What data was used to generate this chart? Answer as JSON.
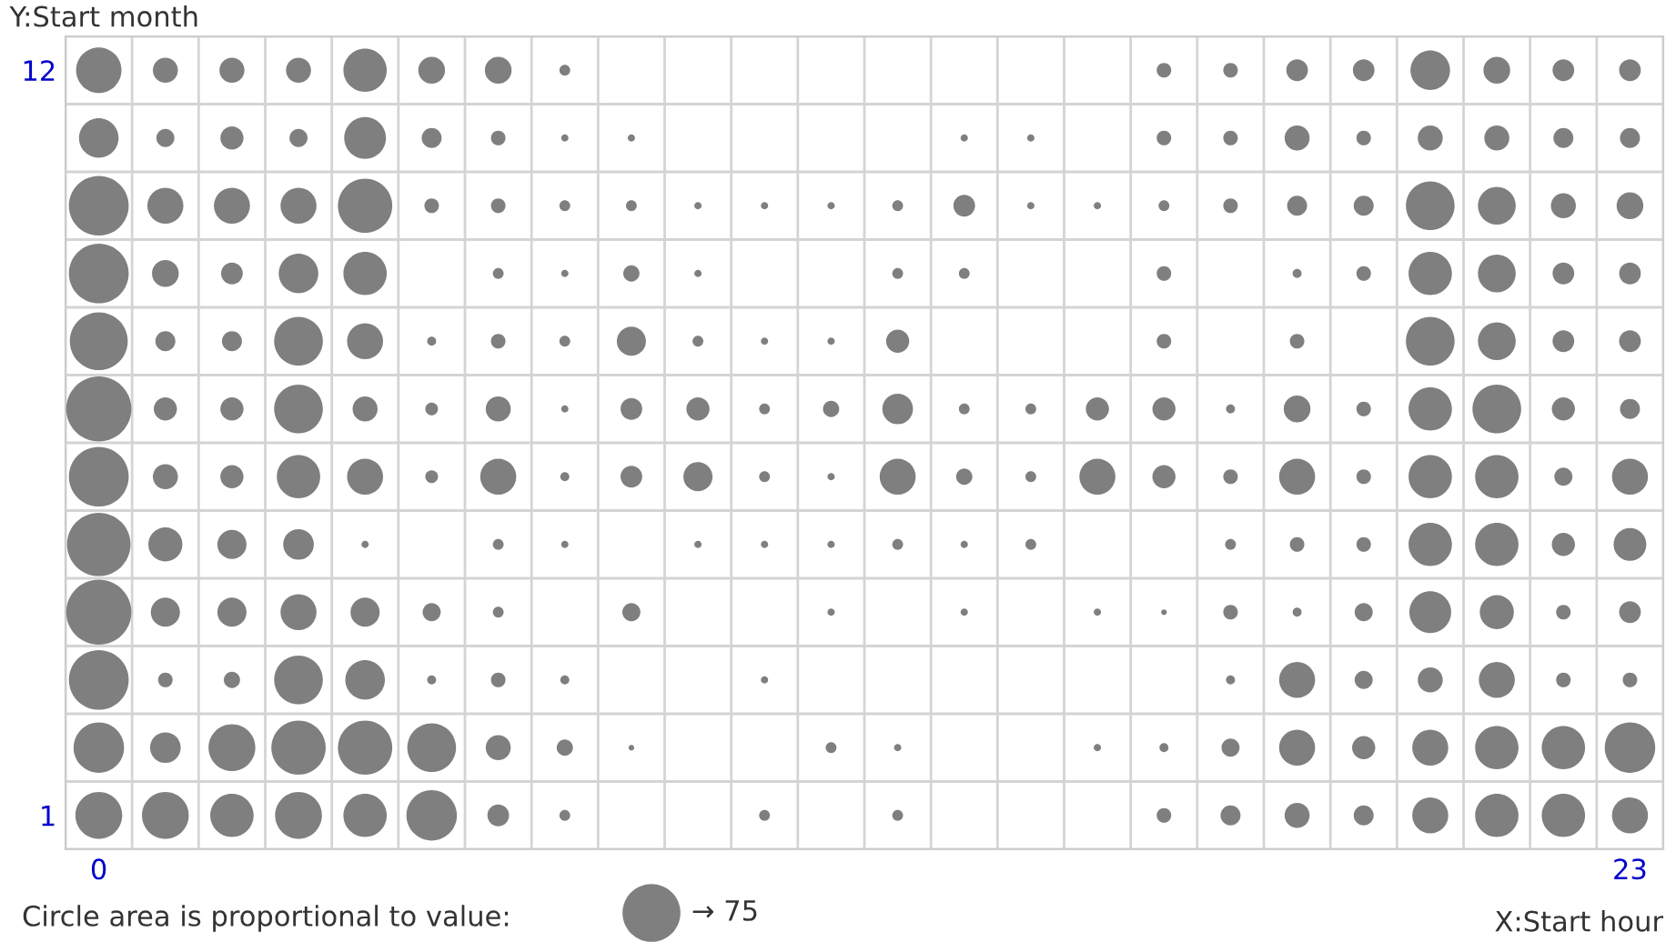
{
  "chart_data": {
    "type": "bubble",
    "ylabel": "Y:Start month",
    "xlabel": "X:Start hour",
    "legend_title": "Circle area is proportional to value:",
    "size_legend": [
      {
        "value": 75,
        "label": "→ 75"
      }
    ],
    "color": "#7f7f7f",
    "grid": true,
    "xlim": [
      -0.5,
      23.5
    ],
    "ylim": [
      0.5,
      12.5
    ],
    "xticks": [
      0,
      23
    ],
    "yticks": [
      1,
      12
    ],
    "series": [
      {
        "x": [
          0,
          1,
          2,
          3,
          4,
          5,
          6,
          7,
          16,
          17,
          18,
          19,
          20,
          21,
          22,
          23
        ],
        "values": [
          12,
          12,
          12,
          12,
          12,
          12,
          12,
          12,
          12,
          12,
          12,
          12,
          12,
          12,
          12,
          12
        ],
        "sizes": [
          46,
          14,
          14,
          14,
          42,
          16,
          16,
          2.6,
          4.7,
          4.7,
          10.5,
          10.5,
          35,
          16,
          10.5,
          10.5
        ]
      },
      {
        "x": [
          0,
          1,
          2,
          3,
          4,
          5,
          6,
          7,
          8,
          13,
          14,
          16,
          17,
          18,
          19,
          20,
          21,
          22,
          23
        ],
        "values": [
          11,
          11,
          11,
          11,
          11,
          11,
          11,
          11,
          11,
          11,
          11,
          11,
          11,
          11,
          11,
          11,
          11,
          11,
          11
        ],
        "sizes": [
          35,
          7.3,
          12,
          7.3,
          39,
          8.9,
          4.7,
          1.2,
          1.2,
          1.2,
          1.2,
          4.7,
          4.7,
          14,
          4.7,
          14,
          14,
          8.9,
          8.9
        ]
      },
      {
        "x": [
          0,
          1,
          2,
          3,
          4,
          5,
          6,
          7,
          8,
          9,
          10,
          11,
          12,
          13,
          14,
          15,
          16,
          17,
          18,
          19,
          20,
          21,
          22,
          23
        ],
        "values": [
          10,
          10,
          10,
          10,
          10,
          10,
          10,
          10,
          10,
          10,
          10,
          10,
          10,
          10,
          10,
          10,
          10,
          10,
          10,
          10,
          10,
          10,
          10,
          10
        ],
        "sizes": [
          80,
          29,
          29,
          29,
          66,
          4.7,
          4.7,
          2.6,
          2.6,
          1.2,
          1.2,
          1.2,
          2.6,
          10.5,
          1.2,
          1.2,
          2.6,
          4.7,
          8.9,
          8.9,
          53,
          32,
          14,
          16
        ]
      },
      {
        "x": [
          0,
          1,
          2,
          3,
          4,
          6,
          7,
          8,
          9,
          12,
          13,
          16,
          18,
          19,
          20,
          21,
          22,
          23
        ],
        "values": [
          9,
          9,
          9,
          9,
          9,
          9,
          9,
          9,
          9,
          9,
          9,
          9,
          9,
          9,
          9,
          9,
          9,
          9
        ],
        "sizes": [
          80,
          16,
          10.5,
          35,
          42,
          2.6,
          1.2,
          5.9,
          1.2,
          2.6,
          2.6,
          4.7,
          1.8,
          4.7,
          42,
          32,
          10.5,
          10.5
        ]
      },
      {
        "x": [
          0,
          1,
          2,
          3,
          4,
          5,
          6,
          7,
          8,
          9,
          10,
          11,
          12,
          16,
          18,
          20,
          21,
          22,
          23
        ],
        "values": [
          8,
          8,
          8,
          8,
          8,
          8,
          8,
          8,
          8,
          8,
          8,
          8,
          8,
          8,
          8,
          8,
          8,
          8,
          8
        ],
        "sizes": [
          75,
          8.9,
          8.9,
          53,
          29,
          1.8,
          4.7,
          2.6,
          19,
          2.6,
          1.2,
          1.2,
          12,
          4.7,
          4.7,
          53,
          32,
          10.5,
          10.5
        ]
      },
      {
        "x": [
          0,
          1,
          2,
          3,
          4,
          5,
          6,
          7,
          8,
          9,
          10,
          11,
          12,
          13,
          14,
          15,
          16,
          17,
          18,
          19,
          20,
          21,
          22,
          23
        ],
        "values": [
          7,
          7,
          7,
          7,
          7,
          7,
          7,
          7,
          7,
          7,
          7,
          7,
          7,
          7,
          7,
          7,
          7,
          7,
          7,
          7,
          7,
          7,
          7,
          7
        ],
        "sizes": [
          95,
          12,
          12,
          53,
          14,
          3.6,
          14,
          1.2,
          10.5,
          12,
          2.6,
          5.9,
          21,
          2.6,
          2.6,
          12,
          12,
          1.8,
          16,
          4.7,
          42,
          53,
          12,
          8.9
        ]
      },
      {
        "x": [
          0,
          1,
          2,
          3,
          4,
          5,
          6,
          7,
          8,
          9,
          10,
          11,
          12,
          13,
          14,
          15,
          16,
          17,
          18,
          19,
          20,
          21,
          22,
          23
        ],
        "values": [
          6,
          6,
          6,
          6,
          6,
          6,
          6,
          6,
          6,
          6,
          6,
          6,
          6,
          6,
          6,
          6,
          6,
          6,
          6,
          6,
          6,
          6,
          6,
          6
        ],
        "sizes": [
          80,
          14,
          12,
          42,
          29,
          3.6,
          29,
          1.8,
          10.5,
          19,
          2.6,
          1.2,
          29,
          5.9,
          2.6,
          29,
          12,
          4.7,
          29,
          4.7,
          42,
          42,
          7.3,
          29
        ]
      },
      {
        "x": [
          0,
          1,
          2,
          3,
          4,
          6,
          7,
          9,
          10,
          11,
          12,
          13,
          14,
          17,
          18,
          19,
          20,
          21,
          22,
          23
        ],
        "values": [
          5,
          5,
          5,
          5,
          5,
          5,
          5,
          5,
          5,
          5,
          5,
          5,
          5,
          5,
          5,
          5,
          5,
          5,
          5,
          5
        ],
        "sizes": [
          90,
          26,
          19,
          21,
          1.2,
          2.6,
          1.2,
          1.2,
          1.2,
          1.2,
          2.6,
          1.2,
          2.6,
          2.6,
          4.7,
          4.7,
          42,
          42,
          12,
          24
        ]
      },
      {
        "x": [
          0,
          1,
          2,
          3,
          4,
          5,
          6,
          8,
          11,
          13,
          15,
          16,
          17,
          18,
          19,
          20,
          21,
          22,
          23
        ],
        "values": [
          4,
          4,
          4,
          4,
          4,
          4,
          4,
          4,
          4,
          4,
          4,
          4,
          4,
          4,
          4,
          4,
          4,
          4,
          4
        ],
        "sizes": [
          95,
          19,
          19,
          29,
          19,
          7.3,
          2.6,
          7.3,
          1.2,
          1.2,
          1.2,
          0.7,
          4.7,
          1.8,
          7.3,
          39,
          26,
          4.7,
          10.5
        ]
      },
      {
        "x": [
          0,
          1,
          2,
          3,
          4,
          5,
          6,
          7,
          10,
          17,
          18,
          19,
          20,
          21,
          22,
          23
        ],
        "values": [
          3,
          3,
          3,
          3,
          3,
          3,
          3,
          3,
          3,
          3,
          3,
          3,
          3,
          3,
          3,
          3
        ],
        "sizes": [
          80,
          4.7,
          5.9,
          53,
          35,
          1.8,
          4.7,
          1.8,
          1.2,
          1.8,
          29,
          7.3,
          14,
          29,
          4.7,
          4.7
        ]
      },
      {
        "x": [
          0,
          1,
          2,
          3,
          4,
          5,
          6,
          7,
          8,
          11,
          12,
          15,
          16,
          17,
          18,
          19,
          20,
          21,
          22,
          23
        ],
        "values": [
          2,
          2,
          2,
          2,
          2,
          2,
          2,
          2,
          2,
          2,
          2,
          2,
          2,
          2,
          2,
          2,
          2,
          2,
          2,
          2
        ],
        "sizes": [
          57,
          21,
          49,
          66,
          66,
          53,
          14,
          5.9,
          0.7,
          2.6,
          1.2,
          1.2,
          1.8,
          7.3,
          29,
          12,
          29,
          42,
          42,
          57
        ]
      },
      {
        "x": [
          0,
          1,
          2,
          3,
          4,
          5,
          6,
          7,
          10,
          12,
          16,
          17,
          18,
          19,
          20,
          21,
          22,
          23
        ],
        "values": [
          1,
          1,
          1,
          1,
          1,
          1,
          1,
          1,
          1,
          1,
          1,
          1,
          1,
          1,
          1,
          1,
          1,
          1
        ],
        "sizes": [
          49,
          49,
          42,
          49,
          42,
          57,
          10.5,
          2.6,
          2.6,
          2.6,
          4.7,
          8.9,
          14,
          8.9,
          29,
          42,
          42,
          29
        ]
      }
    ]
  }
}
